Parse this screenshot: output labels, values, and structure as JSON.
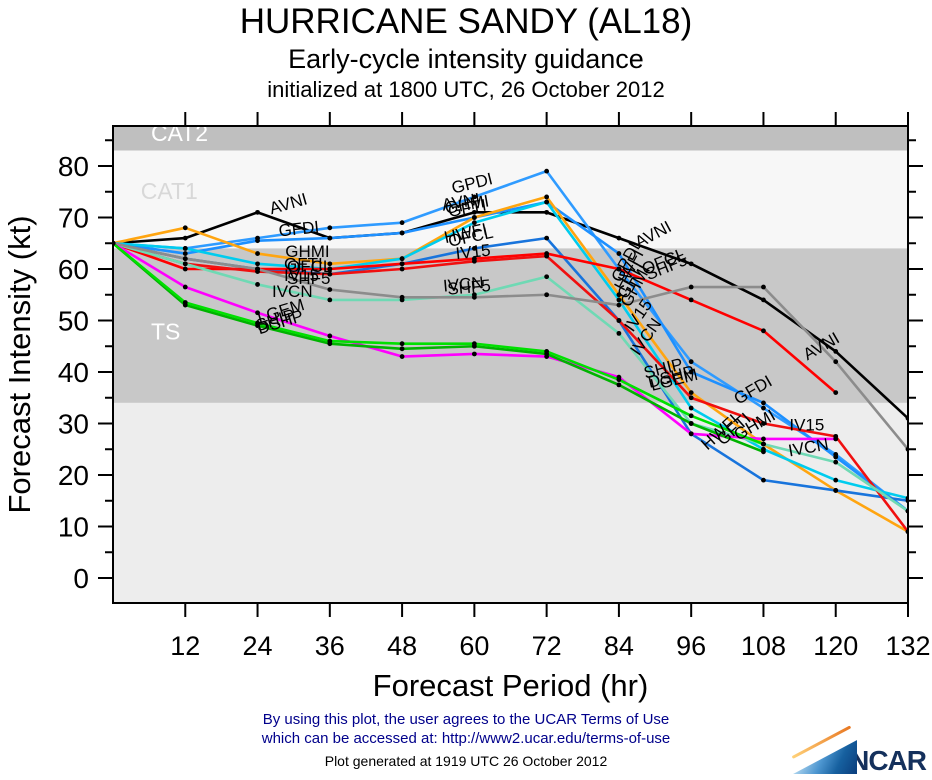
{
  "title": {
    "line1": "HURRICANE SANDY (AL18)",
    "line2": "Early-cycle intensity guidance",
    "line3": "initialized at 1800 UTC, 26 October 2012"
  },
  "chart_data": {
    "type": "line",
    "title": "HURRICANE SANDY (AL18) Early-cycle intensity guidance",
    "xlabel": "Forecast Period (hr)",
    "ylabel": "Forecast Intensity (kt)",
    "xlim": [
      0,
      132
    ],
    "ylim": [
      -5,
      87.8
    ],
    "x_ticks": [
      12,
      24,
      36,
      48,
      60,
      72,
      84,
      96,
      108,
      120,
      132
    ],
    "y_ticks": [
      0,
      10,
      20,
      30,
      40,
      50,
      60,
      70,
      80
    ],
    "y_minor_step": 5,
    "grid": false,
    "legend_position": "inline-labels",
    "marker_color": "#000000",
    "x": [
      0,
      12,
      24,
      36,
      48,
      60,
      72,
      84,
      96,
      108,
      120,
      132
    ],
    "series": [
      {
        "name": "AVNI",
        "color": "#000000",
        "values": [
          65,
          66,
          71,
          66,
          67,
          71,
          71,
          66,
          61,
          54,
          44,
          31
        ]
      },
      {
        "name": "GPDI",
        "color": "#2f9bff",
        "values": [
          65,
          64,
          66,
          68,
          69,
          74,
          79,
          60,
          42,
          33,
          24,
          13
        ]
      },
      {
        "name": "GFDI",
        "color": "#1e90ff",
        "values": [
          65,
          63,
          65.5,
          66,
          67,
          70,
          73,
          63,
          40,
          34,
          23.5,
          13
        ]
      },
      {
        "name": "GHMI",
        "color": "#ffa510",
        "values": [
          65,
          68,
          63,
          61,
          62,
          70,
          74,
          55,
          36,
          26,
          17,
          9
        ]
      },
      {
        "name": "GFTI",
        "color": "#00ccee",
        "values": [
          65,
          64,
          61,
          60,
          62,
          69,
          73,
          54,
          33,
          25,
          19,
          15.5
        ]
      },
      {
        "name": "HWFI",
        "color": "#1874dc",
        "values": [
          65,
          62,
          60,
          59,
          61,
          64,
          66,
          50,
          28,
          19,
          17,
          15
        ]
      },
      {
        "name": "OFCL",
        "color": "#ff0000",
        "values": [
          65,
          60,
          60,
          60,
          61,
          62,
          63,
          60,
          54,
          48,
          36,
          null
        ]
      },
      {
        "name": "IV15",
        "color": "#f01010",
        "values": [
          65,
          61,
          59.5,
          59,
          60,
          61.5,
          62.5,
          50,
          35,
          30,
          27.5,
          9
        ]
      },
      {
        "name": "IVCN",
        "color": "#6fd9b4",
        "values": [
          65,
          61,
          57,
          54,
          54,
          55,
          58.5,
          47.5,
          30,
          26,
          22.5,
          13
        ]
      },
      {
        "name": "SHF5",
        "color": "#8c8c8c",
        "values": [
          65,
          62,
          60,
          56,
          54.5,
          54.5,
          55,
          53,
          56.5,
          56.5,
          42,
          25
        ]
      },
      {
        "name": "LGEM",
        "color": "#ff00ff",
        "values": [
          65,
          56.5,
          51.5,
          47,
          43,
          43.5,
          43,
          39,
          28,
          27,
          27,
          null
        ]
      },
      {
        "name": "DSHP",
        "color": "#00b300",
        "values": [
          65,
          53,
          49,
          45.5,
          44.5,
          45,
          43.5,
          37.5,
          30,
          24.5,
          null,
          null
        ]
      },
      {
        "name": "SHIP",
        "color": "#00e000",
        "values": [
          65,
          53.5,
          49.5,
          46,
          45.5,
          45.5,
          44,
          38.5,
          31.5,
          26,
          null,
          null
        ]
      }
    ],
    "bands": [
      {
        "name": "CAT2",
        "from": 83,
        "to": 87.8,
        "color": "#bfbfbf"
      },
      {
        "name": "CAT1",
        "from": 64,
        "to": 83,
        "color": "#f7f7f7"
      },
      {
        "name": "TS",
        "from": 34,
        "to": 64,
        "color": "#c8c8c8"
      },
      {
        "name": "below",
        "from": -4.85,
        "to": 34,
        "color": "#ededed"
      }
    ],
    "band_labels": [
      {
        "text": "CAT2",
        "x": 6.3,
        "y": 84.9,
        "color": "#ffffff"
      },
      {
        "text": "CAT1",
        "x": 4.6,
        "y": 73.6,
        "color": "#d8d8d8"
      },
      {
        "text": "TS",
        "x": 6.3,
        "y": 46.3,
        "color": "#ffffff"
      }
    ],
    "annotations": [
      {
        "text": "AVNI",
        "x": 26.3,
        "y": 70.6,
        "rot": -16
      },
      {
        "text": "GFDI",
        "x": 27.6,
        "y": 66.3,
        "rot": -6
      },
      {
        "text": "GHMI",
        "x": 28.6,
        "y": 62.3,
        "rot": 0
      },
      {
        "text": "GFTI",
        "x": 28.4,
        "y": 59.9,
        "rot": 0
      },
      {
        "text": "OFCL",
        "x": 28.9,
        "y": 59.4,
        "rot": 0
      },
      {
        "text": "IV15",
        "x": 28.4,
        "y": 57.7,
        "rot": 0
      },
      {
        "text": "SHF5",
        "x": 28.9,
        "y": 57.1,
        "rot": 0
      },
      {
        "text": "IVCN",
        "x": 26.4,
        "y": 54.6,
        "rot": 0
      },
      {
        "text": "LGEM",
        "x": 24.3,
        "y": 49.4,
        "rot": -17
      },
      {
        "text": "SHIP",
        "x": 24.1,
        "y": 47.9,
        "rot": -17
      },
      {
        "text": "DSHP",
        "x": 24.3,
        "y": 47.3,
        "rot": -17
      },
      {
        "text": "GPDI",
        "x": 56.5,
        "y": 74.6,
        "rot": -14
      },
      {
        "text": "AVNI",
        "x": 54.8,
        "y": 71.3,
        "rot": -10
      },
      {
        "text": "GHMI",
        "x": 55.3,
        "y": 70.7,
        "rot": -10
      },
      {
        "text": "GFTI",
        "x": 55.8,
        "y": 70.1,
        "rot": -10
      },
      {
        "text": "HWFI",
        "x": 55.2,
        "y": 65.0,
        "rot": -12
      },
      {
        "text": "OFCL",
        "x": 55.9,
        "y": 64.3,
        "rot": -12
      },
      {
        "text": "IV15",
        "x": 57.0,
        "y": 61.9,
        "rot": -6
      },
      {
        "text": "IVCN",
        "x": 54.9,
        "y": 55.6,
        "rot": -5
      },
      {
        "text": "SHF5",
        "x": 55.6,
        "y": 55.0,
        "rot": -5
      },
      {
        "text": "AVNI",
        "x": 87.3,
        "y": 64.0,
        "rot": -28
      },
      {
        "text": "OFCL",
        "x": 88.3,
        "y": 58.8,
        "rot": -22
      },
      {
        "text": "SHF5",
        "x": 88.9,
        "y": 57.8,
        "rot": -22
      },
      {
        "text": "GPDI",
        "x": 84.3,
        "y": 57.2,
        "rot": -62
      },
      {
        "text": "HWFI",
        "x": 84.8,
        "y": 55.6,
        "rot": -62
      },
      {
        "text": "GFTI",
        "x": 85.3,
        "y": 54.0,
        "rot": -62
      },
      {
        "text": "GHMI",
        "x": 85.8,
        "y": 52.4,
        "rot": -62
      },
      {
        "text": "IV15",
        "x": 86.3,
        "y": 47.6,
        "rot": -55
      },
      {
        "text": "IVCN",
        "x": 87.3,
        "y": 43.0,
        "rot": -55
      },
      {
        "text": "SHIP",
        "x": 88.4,
        "y": 38.7,
        "rot": -14
      },
      {
        "text": "DSHP",
        "x": 89.1,
        "y": 36.9,
        "rot": -14
      },
      {
        "text": "LGEM",
        "x": 89.5,
        "y": 36.3,
        "rot": -14
      },
      {
        "text": "HWFI",
        "x": 98.7,
        "y": 24.7,
        "rot": -42
      },
      {
        "text": "GFTI",
        "x": 101.3,
        "y": 25.6,
        "rot": -42
      },
      {
        "text": "GHMI",
        "x": 103.8,
        "y": 26.6,
        "rot": -30
      },
      {
        "text": "GFDI",
        "x": 103.8,
        "y": 33.6,
        "rot": -30
      },
      {
        "text": "IV15",
        "x": 112.3,
        "y": 28.6,
        "rot": 0
      },
      {
        "text": "IVCN",
        "x": 112.3,
        "y": 23.6,
        "rot": -10
      },
      {
        "text": "AVNI",
        "x": 115.3,
        "y": 42.2,
        "rot": -30
      }
    ]
  },
  "footer": {
    "line1": "By using this plot, the user agrees to the UCAR Terms of Use",
    "line2": "which can be accessed at: http://www2.ucar.edu/terms-of-use",
    "line3": "Plot generated at 1919 UTC   26 October 2012"
  },
  "logo": {
    "text": "NCAR"
  }
}
